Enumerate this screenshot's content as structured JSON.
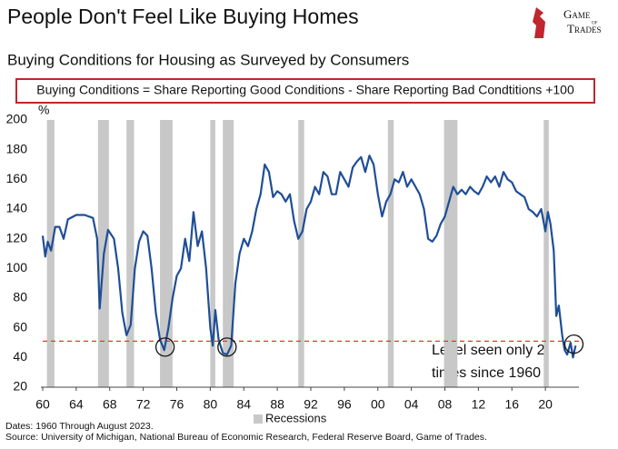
{
  "chart_data": {
    "type": "line",
    "title": "People Don't Feel Like Buying Homes",
    "subtitle": "Buying Conditions for Housing as Surveyed by Consumers",
    "definition": "Buying Conditions = Share Reporting Good Conditions - Share Reporting Bad Condtitions +100",
    "y_unit": "%",
    "logo": [
      "Game",
      "of",
      "Trades"
    ],
    "annotation": [
      "Level seen only 2",
      "times since 1960"
    ],
    "footnotes": [
      "Dates: 1960 Through August 2023.",
      "Source: University of Michigan, National Bureau of Economic Research, Federal Reserve Board, Game of Trades."
    ],
    "color": "#1f4e96",
    "reference_line": 51,
    "reference_color": "#e03b2a",
    "highlights": [
      {
        "x": 1974.6,
        "y": 47
      },
      {
        "x": 1982.0,
        "y": 47
      },
      {
        "x": 2023.4,
        "y": 49
      }
    ],
    "recession_label": "Recessions",
    "recession_color": "#c8c8c8",
    "recessions": [
      [
        1960.5,
        1961.4
      ],
      [
        1966.6,
        1967.9
      ],
      [
        1970.0,
        1970.9
      ],
      [
        1974.0,
        1975.5
      ],
      [
        1980.0,
        1980.6
      ],
      [
        1981.5,
        1982.8
      ],
      [
        1990.5,
        1991.2
      ],
      [
        2001.2,
        2001.9
      ],
      [
        2007.9,
        2009.5
      ],
      [
        2019.8,
        2020.4
      ]
    ],
    "x": [
      1960,
      1960.3,
      1960.6,
      1961,
      1961.5,
      1962,
      1962.5,
      1963,
      1964,
      1965,
      1966,
      1966.5,
      1966.8,
      1967.3,
      1967.8,
      1968.5,
      1969,
      1969.5,
      1970,
      1970.5,
      1971,
      1971.5,
      1972,
      1972.5,
      1973,
      1973.5,
      1974,
      1974.5,
      1975,
      1975.5,
      1976,
      1976.5,
      1977,
      1977.5,
      1978,
      1978.5,
      1979,
      1979.5,
      1980,
      1980.3,
      1980.6,
      1981,
      1981.5,
      1982,
      1982.5,
      1983,
      1983.5,
      1984,
      1984.5,
      1985,
      1985.5,
      1986,
      1986.5,
      1987,
      1987.5,
      1988,
      1988.5,
      1989,
      1989.5,
      1990,
      1990.5,
      1991,
      1991.5,
      1992,
      1992.5,
      1993,
      1993.5,
      1994,
      1994.5,
      1995,
      1995.5,
      1996,
      1996.5,
      1997,
      1997.5,
      1998,
      1998.5,
      1999,
      1999.5,
      2000,
      2000.5,
      2001,
      2001.5,
      2002,
      2002.5,
      2003,
      2003.5,
      2004,
      2004.5,
      2005,
      2005.5,
      2006,
      2006.5,
      2007,
      2007.5,
      2008,
      2008.5,
      2009,
      2009.5,
      2010,
      2010.5,
      2011,
      2011.5,
      2012,
      2012.5,
      2013,
      2013.5,
      2014,
      2014.5,
      2015,
      2015.5,
      2016,
      2016.5,
      2017,
      2017.5,
      2018,
      2018.5,
      2019,
      2019.5,
      2020,
      2020.3,
      2020.6,
      2021,
      2021.3,
      2021.6,
      2022,
      2022.3,
      2022.6,
      2023,
      2023.3,
      2023.6
    ],
    "values": [
      122,
      108,
      118,
      112,
      128,
      128,
      120,
      133,
      136,
      136,
      134,
      120,
      73,
      110,
      126,
      120,
      100,
      70,
      55,
      62,
      100,
      118,
      125,
      122,
      100,
      70,
      52,
      45,
      60,
      80,
      95,
      100,
      120,
      105,
      138,
      115,
      125,
      100,
      60,
      48,
      72,
      52,
      43,
      42,
      48,
      90,
      110,
      120,
      115,
      125,
      140,
      150,
      170,
      165,
      148,
      152,
      150,
      145,
      150,
      132,
      120,
      125,
      140,
      145,
      155,
      150,
      165,
      162,
      150,
      150,
      165,
      160,
      155,
      168,
      172,
      175,
      165,
      176,
      170,
      150,
      135,
      145,
      150,
      160,
      158,
      165,
      155,
      160,
      155,
      150,
      140,
      120,
      118,
      122,
      130,
      135,
      145,
      155,
      150,
      153,
      150,
      155,
      152,
      150,
      155,
      162,
      158,
      162,
      155,
      165,
      160,
      158,
      152,
      150,
      148,
      140,
      138,
      135,
      140,
      125,
      138,
      130,
      112,
      68,
      75,
      55,
      45,
      42,
      50,
      40,
      48
    ],
    "xlim": [
      1960,
      2024
    ],
    "xticks": [
      {
        "value": 1960,
        "label": "60"
      },
      {
        "value": 1964,
        "label": "64"
      },
      {
        "value": 1968,
        "label": "68"
      },
      {
        "value": 1972,
        "label": "72"
      },
      {
        "value": 1976,
        "label": "76"
      },
      {
        "value": 1980,
        "label": "80"
      },
      {
        "value": 1984,
        "label": "84"
      },
      {
        "value": 1988,
        "label": "88"
      },
      {
        "value": 1992,
        "label": "92"
      },
      {
        "value": 1996,
        "label": "96"
      },
      {
        "value": 2000,
        "label": "00"
      },
      {
        "value": 2004,
        "label": "04"
      },
      {
        "value": 2008,
        "label": "08"
      },
      {
        "value": 2012,
        "label": "12"
      },
      {
        "value": 2016,
        "label": "16"
      },
      {
        "value": 2020,
        "label": "20"
      }
    ],
    "ylim": [
      20,
      200
    ],
    "yticks": [
      20,
      40,
      60,
      80,
      100,
      120,
      140,
      160,
      180,
      200
    ]
  }
}
